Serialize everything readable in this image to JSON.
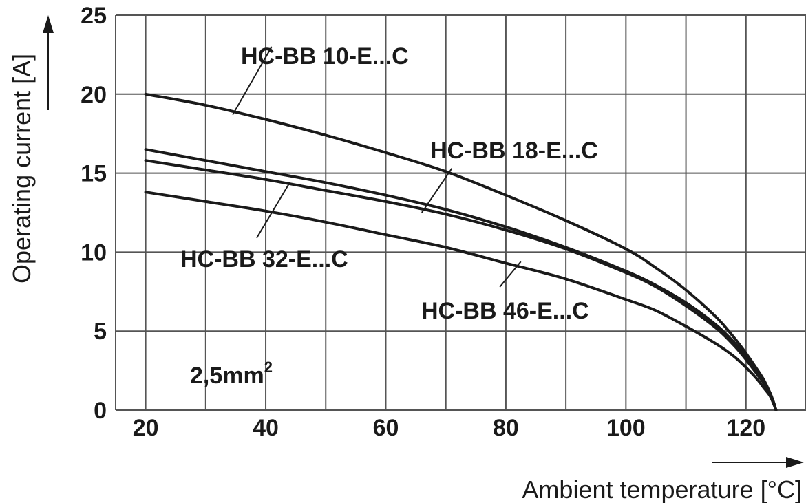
{
  "chart_data": {
    "type": "line",
    "xlabel": "Ambient temperature [°C]",
    "ylabel": "Operating current [A]",
    "xlim": [
      15,
      130
    ],
    "ylim": [
      0,
      25
    ],
    "x_ticks": [
      20,
      40,
      60,
      80,
      100,
      120
    ],
    "y_ticks": [
      0,
      5,
      10,
      15,
      20,
      25
    ],
    "grid": true,
    "annotation": {
      "text": "2,5mm",
      "superscript": "2"
    },
    "series": [
      {
        "name": "HC-BB 10-E...C",
        "points": [
          [
            20,
            20.0
          ],
          [
            30,
            19.3
          ],
          [
            40,
            18.4
          ],
          [
            50,
            17.4
          ],
          [
            60,
            16.3
          ],
          [
            70,
            15.1
          ],
          [
            80,
            13.6
          ],
          [
            90,
            12.0
          ],
          [
            100,
            10.2
          ],
          [
            105,
            9.0
          ],
          [
            110,
            7.6
          ],
          [
            115,
            5.9
          ],
          [
            118,
            4.6
          ],
          [
            120,
            3.6
          ],
          [
            122,
            2.5
          ],
          [
            123,
            1.9
          ],
          [
            124,
            1.1
          ],
          [
            124.6,
            0.5
          ],
          [
            125,
            0.0
          ]
        ]
      },
      {
        "name": "HC-BB 18-E...C",
        "points": [
          [
            20,
            16.5
          ],
          [
            30,
            15.8
          ],
          [
            40,
            15.1
          ],
          [
            50,
            14.4
          ],
          [
            60,
            13.6
          ],
          [
            70,
            12.7
          ],
          [
            80,
            11.6
          ],
          [
            90,
            10.3
          ],
          [
            100,
            8.8
          ],
          [
            105,
            7.9
          ],
          [
            110,
            6.8
          ],
          [
            115,
            5.4
          ],
          [
            118,
            4.3
          ],
          [
            120,
            3.4
          ],
          [
            122,
            2.4
          ],
          [
            123,
            1.8
          ],
          [
            124,
            1.1
          ],
          [
            124.6,
            0.5
          ],
          [
            125,
            0.0
          ]
        ]
      },
      {
        "name": "HC-BB 32-E...C",
        "points": [
          [
            20,
            15.8
          ],
          [
            30,
            15.2
          ],
          [
            40,
            14.6
          ],
          [
            50,
            13.9
          ],
          [
            60,
            13.2
          ],
          [
            70,
            12.4
          ],
          [
            80,
            11.4
          ],
          [
            90,
            10.2
          ],
          [
            100,
            8.7
          ],
          [
            105,
            7.8
          ],
          [
            110,
            6.6
          ],
          [
            115,
            5.2
          ],
          [
            118,
            4.1
          ],
          [
            120,
            3.2
          ],
          [
            122,
            2.2
          ],
          [
            123,
            1.7
          ],
          [
            124,
            1.0
          ],
          [
            124.6,
            0.5
          ],
          [
            125,
            0.0
          ]
        ]
      },
      {
        "name": "HC-BB 46-E...C",
        "points": [
          [
            20,
            13.8
          ],
          [
            30,
            13.2
          ],
          [
            40,
            12.6
          ],
          [
            50,
            11.9
          ],
          [
            60,
            11.1
          ],
          [
            70,
            10.3
          ],
          [
            80,
            9.3
          ],
          [
            90,
            8.3
          ],
          [
            100,
            7.0
          ],
          [
            105,
            6.3
          ],
          [
            110,
            5.3
          ],
          [
            115,
            4.2
          ],
          [
            118,
            3.4
          ],
          [
            120,
            2.7
          ],
          [
            122,
            1.9
          ],
          [
            123,
            1.4
          ],
          [
            124,
            0.9
          ],
          [
            124.6,
            0.4
          ],
          [
            125,
            0.0
          ]
        ]
      }
    ]
  },
  "colors": {
    "line": "#1a1a1a",
    "grid": "#555555",
    "background": "#ffffff"
  }
}
